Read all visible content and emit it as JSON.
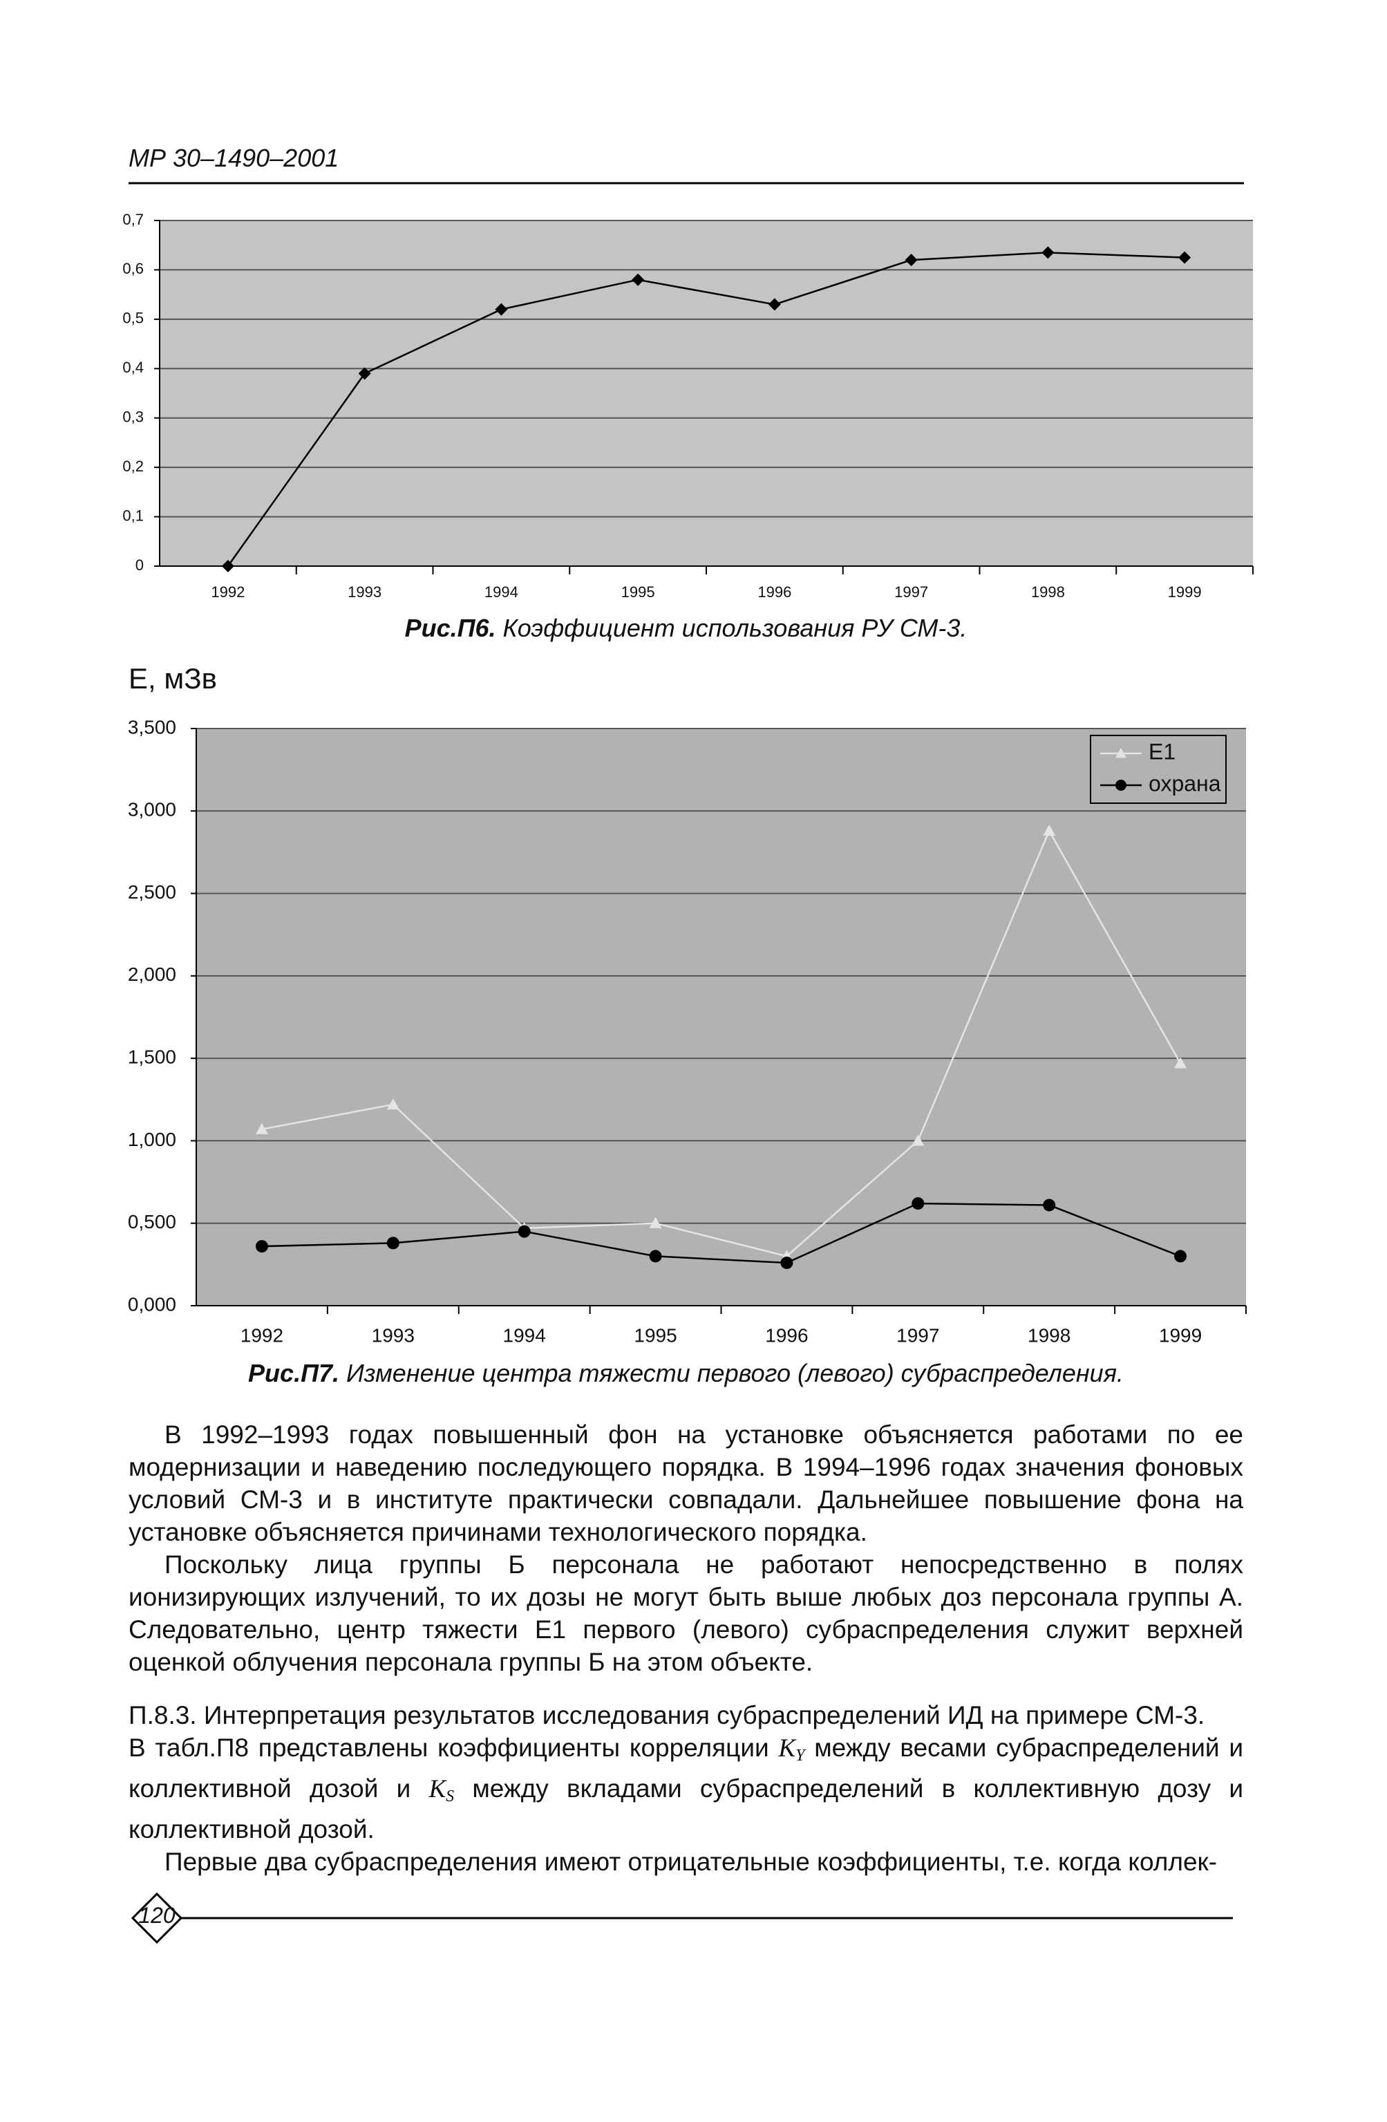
{
  "header": {
    "code": "МР 30–1490–2001"
  },
  "chart_data": [
    {
      "type": "line",
      "categories": [
        "1992",
        "1993",
        "1994",
        "1995",
        "1996",
        "1997",
        "1998",
        "1999"
      ],
      "values": [
        0,
        0.39,
        0.52,
        0.58,
        0.53,
        0.62,
        0.635,
        0.625
      ],
      "color": "#000000",
      "marker": "diamond",
      "ylim": [
        0,
        0.7
      ],
      "yticks": [
        0,
        {
          "value": 0.1,
          "label": "0,1"
        },
        {
          "value": 0.2,
          "label": "0,2"
        },
        {
          "value": 0.3,
          "label": "0,3"
        },
        {
          "value": 0.4,
          "label": "0,4"
        },
        {
          "value": 0.5,
          "label": "0,5"
        },
        {
          "value": 0.6,
          "label": "0,6"
        },
        {
          "value": 0.7,
          "label": "0,7"
        }
      ],
      "grid": true,
      "caption_label": "Рис.П6.",
      "caption": "Коэффициент использования РУ СМ-3."
    },
    {
      "type": "line",
      "y_label": "E, мЗв",
      "categories": [
        "1992",
        "1993",
        "1994",
        "1995",
        "1996",
        "1997",
        "1998",
        "1999"
      ],
      "series": [
        {
          "name": "E1",
          "color": "#e4e4e4",
          "marker": "triangle",
          "values": [
            1.07,
            1.22,
            0.47,
            0.5,
            0.3,
            1.0,
            2.88,
            1.47
          ]
        },
        {
          "name": "охрана",
          "color": "#000000",
          "marker": "circle",
          "values": [
            0.36,
            0.38,
            0.45,
            0.3,
            0.26,
            0.62,
            0.61,
            0.3
          ]
        }
      ],
      "ylim": [
        0,
        3.5
      ],
      "yticks": [
        {
          "value": 0,
          "label": "0,000"
        },
        {
          "value": 0.5,
          "label": "0,500"
        },
        {
          "value": 1,
          "label": "1,000"
        },
        {
          "value": 1.5,
          "label": "1,500"
        },
        {
          "value": 2,
          "label": "2,000"
        },
        {
          "value": 2.5,
          "label": "2,500"
        },
        {
          "value": 3,
          "label": "3,000"
        },
        {
          "value": 3.5,
          "label": "3,500"
        }
      ],
      "grid": true,
      "legend": "top-right",
      "caption_label": "Рис.П7.",
      "caption": "Изменение центра тяжести первого (левого) субраспределения."
    }
  ],
  "document": {
    "paragraph_1": "В 1992–1993 годах повышенный фон на установке объясняется работами по ее модернизации и наведению последующего порядка. В 1994–1996 годах значения фоновых условий СМ-3 и в институте практически совпадали. Дальнейшее повышение фона на установке объясняется причинами технологического порядка.",
    "paragraph_2": "Поскольку лица группы Б персонала не работают непосредственно в полях ионизирующих излучений, то их дозы не могут быть выше любых доз персонала группы А. Следовательно, центр тяжести Е1 первого (левого) субраспределения служит верхней оценкой облучения персонала группы Б на этом объекте.",
    "paragraph_3": "П.8.3. Интерпретация результатов исследования субраспределений ИД на примере СМ-3.",
    "paragraph_4": [
      "В табл.П8 представлены коэффициенты корреляции ",
      "K",
      "Y",
      " между весами субраспределений и коллективной дозой и ",
      "K",
      "S",
      " между вкладами субраспределений в коллективную дозу и коллективной дозой."
    ],
    "paragraph_5": "Первые два субраспределения имеют отрицательные коэффициенты, т.е. когда коллек-",
    "page_number": "120"
  }
}
